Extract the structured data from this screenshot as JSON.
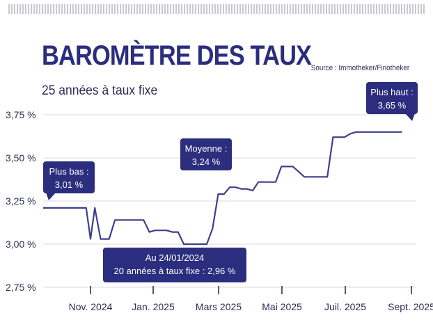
{
  "header": {
    "title": "BAROMÈTRE DES TAUX",
    "subtitle": "25 années à taux fixe",
    "source": "Source : Immotheker/Finotheker"
  },
  "colors": {
    "line": "#3d3f8e",
    "callout": "#2b2d7e",
    "grid": "#d9d9e3",
    "text": "#2b2d55"
  },
  "chart_data": {
    "type": "line",
    "title": "BAROMÈTRE DES TAUX",
    "subtitle": "25 années à taux fixe",
    "ylim": [
      2.75,
      3.75
    ],
    "y_ticks": [
      3.75,
      3.5,
      3.25,
      3.0,
      2.75
    ],
    "y_tick_labels": [
      "3,75 %",
      "3,50 %",
      "3,25 %",
      "3,00 %",
      "2,75 %"
    ],
    "x_ticks": [
      "Nov. 2024",
      "Jan. 2025",
      "Mars 2025",
      "Mai 2025",
      "Juil. 2025",
      "Sept. 2025"
    ],
    "grid": true,
    "series": [
      {
        "x": [
          0,
          1,
          2,
          3,
          3.3,
          3.6,
          4,
          4.3,
          4.6,
          5,
          5.4,
          5.8,
          6.2,
          6.6,
          7,
          7.4,
          7.8,
          8.2,
          8.6,
          9,
          9.4,
          9.8,
          10.2,
          10.6,
          11,
          11.4,
          11.8,
          12.2,
          12.6,
          13,
          13.4,
          13.8,
          14.2,
          14.6,
          15,
          15.4,
          15.8,
          16.2,
          16.6,
          17,
          17.4,
          17.8,
          18.2,
          18.6,
          19,
          19.4,
          19.8,
          20.2,
          20.6,
          21,
          21.4,
          21.8,
          22.2,
          22.6,
          23,
          23.4,
          23.8,
          24.2,
          24.6,
          25
        ],
        "y": [
          3.21,
          3.21,
          3.21,
          3.21,
          3.03,
          3.21,
          3.03,
          3.03,
          3.03,
          3.14,
          3.14,
          3.14,
          3.14,
          3.14,
          3.14,
          3.07,
          3.08,
          3.08,
          3.08,
          3.07,
          3.07,
          3.0,
          3.0,
          3.0,
          3.0,
          3.0,
          3.09,
          3.29,
          3.29,
          3.33,
          3.33,
          3.32,
          3.32,
          3.31,
          3.36,
          3.36,
          3.36,
          3.36,
          3.45,
          3.45,
          3.45,
          3.42,
          3.39,
          3.39,
          3.39,
          3.39,
          3.39,
          3.62,
          3.62,
          3.62,
          3.64,
          3.65,
          3.65,
          3.65,
          3.65,
          3.65,
          3.65,
          3.65,
          3.65,
          3.65
        ]
      }
    ],
    "annotations": [
      {
        "line1": "Plus bas :",
        "line2": "3,01 %"
      },
      {
        "line1": "Moyenne :",
        "line2": "3,24 %"
      },
      {
        "line1": "Plus haut :",
        "line2": "3,65 %"
      },
      {
        "line1": "Au 24/01/2024",
        "line2": "20 années à taux fixe : 2,96 %"
      }
    ]
  }
}
